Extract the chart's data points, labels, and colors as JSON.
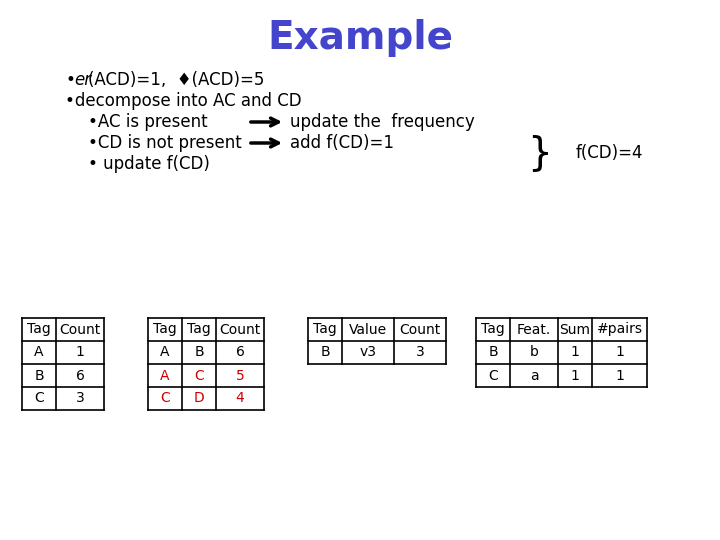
{
  "title": "Example",
  "title_color": "#4444cc",
  "title_fontsize": 28,
  "bg_color": "#ffffff",
  "text_color": "#000000",
  "red_color": "#cc0000",
  "font_size_body": 12,
  "font_size_table": 10,
  "table1_headers": [
    "Tag",
    "Count"
  ],
  "table1_rows": [
    [
      "A",
      "1"
    ],
    [
      "B",
      "6"
    ],
    [
      "C",
      "3"
    ]
  ],
  "table2_headers": [
    "Tag",
    "Tag",
    "Count"
  ],
  "table2_rows": [
    [
      "A",
      "B",
      "6"
    ],
    [
      "A",
      "C",
      "5"
    ],
    [
      "C",
      "D",
      "4"
    ]
  ],
  "table2_red_rows": [
    1,
    2
  ],
  "table3_headers": [
    "Tag",
    "Value",
    "Count"
  ],
  "table3_rows": [
    [
      "B",
      "v3",
      "3"
    ]
  ],
  "table4_headers": [
    "Tag",
    "Feat.",
    "Sum",
    "#pairs"
  ],
  "table4_rows": [
    [
      "B",
      "b",
      "1",
      "1"
    ],
    [
      "C",
      "a",
      "1",
      "1"
    ]
  ]
}
